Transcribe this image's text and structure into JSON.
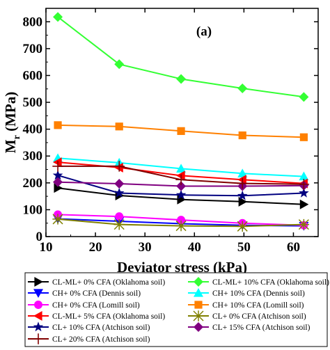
{
  "chart_data": {
    "type": "line",
    "panel_label": "(a)",
    "xlabel": "Deviator stress (kPa)",
    "ylabel_main": "M",
    "ylabel_sub": "r",
    "ylabel_unit": " (MPa)",
    "xlim": [
      10,
      65
    ],
    "ylim": [
      0,
      850
    ],
    "xticks": [
      10,
      20,
      30,
      40,
      50,
      60
    ],
    "yticks": [
      0,
      100,
      200,
      300,
      400,
      500,
      600,
      700,
      800
    ],
    "grid": false,
    "legend_position": "below",
    "x": [
      12.4,
      24.8,
      37.3,
      49.7,
      62.1
    ],
    "series": [
      {
        "name": "CL-ML+ 0% CFA (Oklahoma soil)",
        "color": "#000000",
        "marker": "triangle-right",
        "values": [
          181,
          153,
          138,
          130,
          120
        ]
      },
      {
        "name": "CL-ML+ 10% CFA (Oklahoma soil)",
        "color": "#33ff33",
        "marker": "diamond",
        "values": [
          818,
          642,
          587,
          552,
          520
        ]
      },
      {
        "name": "CH+ 0% CFA (Dennis soil)",
        "color": "#0000ff",
        "marker": "triangle-down",
        "values": [
          66,
          57,
          48,
          42,
          40
        ]
      },
      {
        "name": "CH+ 10% CFA (Dennis soil)",
        "color": "#00ffff",
        "marker": "triangle-up",
        "values": [
          292,
          275,
          253,
          235,
          224
        ]
      },
      {
        "name": "CH+ 0% CFA (Lomill soil)",
        "color": "#ff00ff",
        "marker": "circle",
        "values": [
          82,
          75,
          62,
          50,
          42
        ]
      },
      {
        "name": "CH+ 10% CFA (Lomill soil)",
        "color": "#ff8000",
        "marker": "square",
        "values": [
          415,
          410,
          393,
          377,
          370
        ]
      },
      {
        "name": "CL-ML+ 5% CFA (Oklahoma soil)",
        "color": "#ff0000",
        "marker": "triangle-left",
        "values": [
          277,
          257,
          227,
          212,
          198
        ]
      },
      {
        "name": "CL+ 0% CFA (Atchison soil)",
        "color": "#808000",
        "marker": "star-x",
        "values": [
          65,
          45,
          40,
          38,
          45
        ]
      },
      {
        "name": "CL+ 10% CFA (Atchison soil)",
        "color": "#000080",
        "marker": "star",
        "values": [
          228,
          162,
          155,
          152,
          162
        ]
      },
      {
        "name": "CL+ 15% CFA (Atchison soil)",
        "color": "#800080",
        "marker": "diamond",
        "values": [
          203,
          197,
          188,
          188,
          190
        ]
      },
      {
        "name": "CL+ 20% CFA (Atchison soil)",
        "color": "#800000",
        "marker": "plus",
        "values": [
          262,
          262,
          212,
          198,
          195
        ]
      }
    ]
  }
}
